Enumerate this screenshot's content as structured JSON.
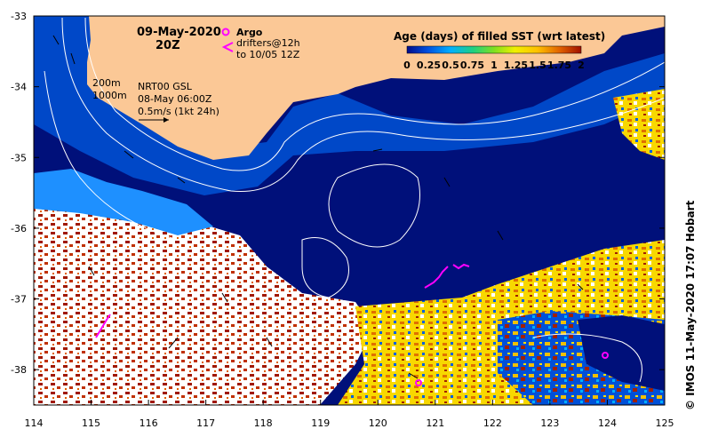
{
  "map": {
    "title_date": "09-May-2020",
    "title_time": "20Z",
    "legend": {
      "argo_label": "Argo",
      "drifters_label": "drifters@12h",
      "drifters_sub": "to 10/05 12Z",
      "argo_color": "#ff00ff"
    },
    "contours_note": {
      "line1": "200m",
      "line2": "1000m"
    },
    "current_note": {
      "line1": "NRT00 GSL",
      "line2": "08-May 06:00Z",
      "line3": "0.5m/s (1kt 24h)"
    },
    "colorbar": {
      "title": "Age (days) of filled SST (wrt latest)",
      "ticks": [
        "0",
        "0.25",
        "0.5",
        "0.75",
        "1",
        "1.25",
        "1.5",
        "1.75",
        "2"
      ],
      "tick_values": [
        0,
        0.25,
        0.5,
        0.75,
        1,
        1.25,
        1.5,
        1.75,
        2
      ],
      "colors": [
        "#000c8a",
        "#0050e0",
        "#00b0ff",
        "#20d080",
        "#80e020",
        "#f0f000",
        "#ffc000",
        "#e06000",
        "#a01000"
      ]
    },
    "credit": "© IMOS 11-May-2020 17:07 Hobart",
    "x_axis": {
      "ticks": [
        "114",
        "115",
        "116",
        "117",
        "118",
        "119",
        "120",
        "121",
        "122",
        "123",
        "124",
        "125"
      ],
      "values": [
        114,
        115,
        116,
        117,
        118,
        119,
        120,
        121,
        122,
        123,
        124,
        125
      ],
      "range": [
        114,
        125
      ]
    },
    "y_axis": {
      "ticks": [
        "-33",
        "-34",
        "-35",
        "-36",
        "-37",
        "-38"
      ],
      "values": [
        -33,
        -34,
        -35,
        -36,
        -37,
        -38
      ],
      "range": [
        -38.5,
        -33
      ]
    },
    "palette": {
      "land": "#fbc896",
      "ocean_deep": "#00107a",
      "ocean_mid": "#0048c8",
      "ocean_light": "#1e90ff",
      "nodata": "#ffffff",
      "old_red": "#a01800",
      "mid_orange": "#e06000",
      "yellow": "#f8e000"
    }
  }
}
